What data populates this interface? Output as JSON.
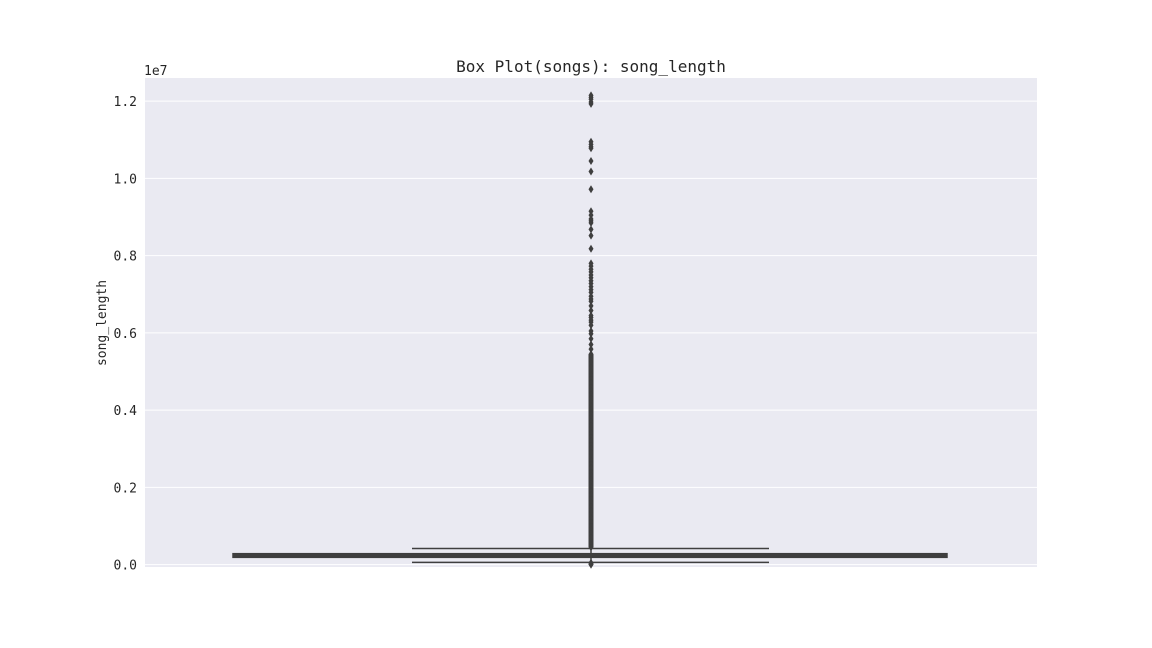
{
  "chart_data": {
    "type": "box",
    "title": "Box Plot(songs): song_length",
    "xlabel": "",
    "ylabel": "song_length",
    "y_offset_label": "1e7",
    "y_scale": 10000000,
    "ylim": [
      -60000,
      12600000
    ],
    "yticks": [
      0,
      2000000,
      4000000,
      6000000,
      8000000,
      10000000,
      12000000
    ],
    "ytick_labels": [
      "0.0",
      "0.2",
      "0.4",
      "0.6",
      "0.8",
      "1.0",
      "1.2"
    ],
    "grid": true,
    "colors": {
      "plot_background": "#eaeaf2",
      "grid": "#ffffff",
      "box_edge": "#3f3f3f",
      "text": "#262626"
    },
    "box": {
      "q1": 190000,
      "median": 245000,
      "q3": 285000,
      "whisker_low": 60000,
      "whisker_high": 420000
    },
    "outliers": [
      12150000,
      12100000,
      12050000,
      11980000,
      11930000,
      10950000,
      10880000,
      10820000,
      10780000,
      10450000,
      10180000,
      9720000,
      9150000,
      9050000,
      8950000,
      8900000,
      8850000,
      8680000,
      8520000,
      8180000,
      7800000,
      7730000,
      7650000,
      7580000,
      7500000,
      7430000,
      7350000,
      7280000,
      7200000,
      7120000,
      7050000,
      6950000,
      6880000,
      6820000,
      6700000,
      6580000,
      6450000,
      6400000,
      6330000,
      6280000,
      6200000,
      6050000,
      5980000,
      5850000,
      5700000,
      5580000,
      5450000,
      5380000,
      5300000,
      5200000,
      5100000,
      5000000,
      4900000,
      4800000,
      4700000,
      4600000,
      4500000,
      4400000,
      4300000,
      4200000,
      4100000,
      4000000,
      3900000,
      3800000,
      3700000,
      3600000,
      3500000,
      3400000,
      3300000,
      3200000,
      3100000,
      3000000,
      2900000,
      2800000,
      2700000,
      2600000,
      2500000,
      2400000,
      2300000,
      2200000,
      2100000,
      2000000,
      1900000,
      1800000,
      1700000,
      1600000,
      1500000,
      1400000,
      1300000,
      1200000,
      1100000,
      1000000,
      900000,
      800000,
      700000,
      600000,
      500000,
      450000,
      50000,
      30000,
      15000,
      5000,
      0
    ]
  }
}
